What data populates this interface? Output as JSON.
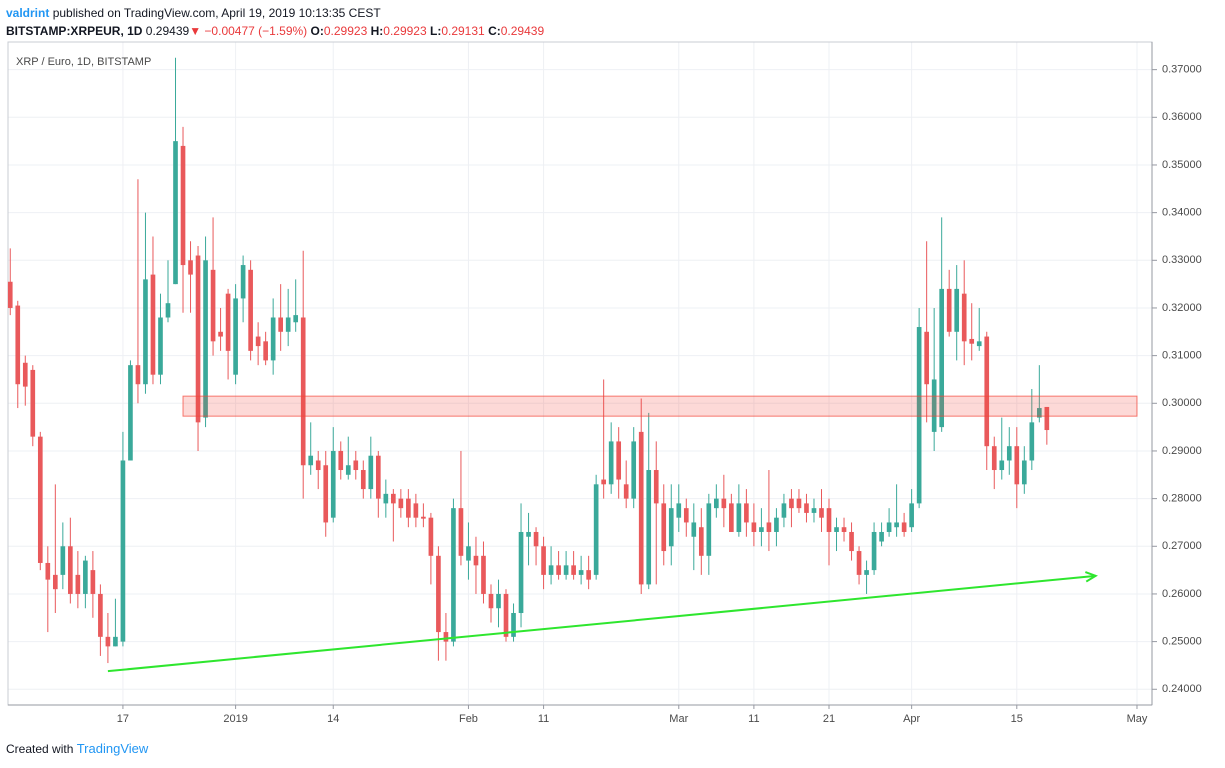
{
  "header": {
    "author": "valdrint",
    "published": "published on TradingView.com, April 19, 2019 10:13:35 CEST",
    "symbol": "BITSTAMP:XRPEUR, 1D",
    "last": "0.29439",
    "arrow": "▼",
    "change": "−0.00477 (−1.59%)",
    "o_label": "O:",
    "o": "0.29923",
    "h_label": "H:",
    "h": "0.29923",
    "l_label": "L:",
    "l": "0.29131",
    "c_label": "C:",
    "c": "0.29439"
  },
  "chart_data": {
    "type": "candlestick",
    "title": "XRP / Euro, 1D, BITSTAMP",
    "up_color": "#3aa99a",
    "down_color": "#e9595b",
    "grid": true,
    "ohlc": [
      [
        0.3255,
        0.3325,
        0.3185,
        0.32
      ],
      [
        0.3205,
        0.3215,
        0.299,
        0.304
      ],
      [
        0.3085,
        0.31,
        0.2995,
        0.3035
      ],
      [
        0.307,
        0.308,
        0.291,
        0.293
      ],
      [
        0.293,
        0.294,
        0.265,
        0.2665
      ],
      [
        0.2665,
        0.27,
        0.252,
        0.263
      ],
      [
        0.264,
        0.283,
        0.256,
        0.261
      ],
      [
        0.264,
        0.275,
        0.261,
        0.27
      ],
      [
        0.27,
        0.276,
        0.258,
        0.26
      ],
      [
        0.264,
        0.269,
        0.257,
        0.26
      ],
      [
        0.26,
        0.268,
        0.257,
        0.267
      ],
      [
        0.265,
        0.269,
        0.255,
        0.26
      ],
      [
        0.26,
        0.262,
        0.247,
        0.251
      ],
      [
        0.251,
        0.256,
        0.2455,
        0.249
      ],
      [
        0.249,
        0.259,
        0.249,
        0.251
      ],
      [
        0.25,
        0.294,
        0.249,
        0.288
      ],
      [
        0.288,
        0.309,
        0.288,
        0.308
      ],
      [
        0.308,
        0.347,
        0.3,
        0.304
      ],
      [
        0.304,
        0.34,
        0.302,
        0.326
      ],
      [
        0.327,
        0.335,
        0.304,
        0.306
      ],
      [
        0.306,
        0.323,
        0.304,
        0.318
      ],
      [
        0.318,
        0.33,
        0.317,
        0.321
      ],
      [
        0.325,
        0.3725,
        0.325,
        0.355
      ],
      [
        0.354,
        0.358,
        0.319,
        0.329
      ],
      [
        0.33,
        0.334,
        0.319,
        0.327
      ],
      [
        0.331,
        0.333,
        0.29,
        0.296
      ],
      [
        0.297,
        0.335,
        0.295,
        0.33
      ],
      [
        0.328,
        0.339,
        0.31,
        0.313
      ],
      [
        0.315,
        0.32,
        0.311,
        0.314
      ],
      [
        0.323,
        0.324,
        0.305,
        0.311
      ],
      [
        0.306,
        0.325,
        0.304,
        0.322
      ],
      [
        0.322,
        0.331,
        0.317,
        0.329
      ],
      [
        0.328,
        0.33,
        0.309,
        0.311
      ],
      [
        0.314,
        0.317,
        0.308,
        0.312
      ],
      [
        0.313,
        0.315,
        0.308,
        0.309
      ],
      [
        0.309,
        0.322,
        0.306,
        0.318
      ],
      [
        0.318,
        0.325,
        0.311,
        0.315
      ],
      [
        0.315,
        0.324,
        0.312,
        0.318
      ],
      [
        0.317,
        0.326,
        0.315,
        0.3185
      ],
      [
        0.318,
        0.332,
        0.28,
        0.287
      ],
      [
        0.287,
        0.296,
        0.285,
        0.289
      ],
      [
        0.288,
        0.29,
        0.282,
        0.286
      ],
      [
        0.287,
        0.29,
        0.272,
        0.275
      ],
      [
        0.276,
        0.295,
        0.275,
        0.29
      ],
      [
        0.29,
        0.292,
        0.284,
        0.286
      ],
      [
        0.285,
        0.293,
        0.284,
        0.287
      ],
      [
        0.288,
        0.29,
        0.284,
        0.286
      ],
      [
        0.286,
        0.288,
        0.28,
        0.282
      ],
      [
        0.282,
        0.293,
        0.28,
        0.289
      ],
      [
        0.289,
        0.29,
        0.276,
        0.28
      ],
      [
        0.279,
        0.284,
        0.276,
        0.281
      ],
      [
        0.281,
        0.282,
        0.271,
        0.279
      ],
      [
        0.28,
        0.282,
        0.276,
        0.278
      ],
      [
        0.28,
        0.282,
        0.274,
        0.276
      ],
      [
        0.279,
        0.281,
        0.274,
        0.276
      ],
      [
        0.2762,
        0.279,
        0.274,
        0.2758
      ],
      [
        0.276,
        0.277,
        0.262,
        0.268
      ],
      [
        0.268,
        0.27,
        0.246,
        0.252
      ],
      [
        0.252,
        0.256,
        0.246,
        0.25
      ],
      [
        0.25,
        0.28,
        0.249,
        0.278
      ],
      [
        0.278,
        0.29,
        0.266,
        0.268
      ],
      [
        0.267,
        0.275,
        0.263,
        0.27
      ],
      [
        0.268,
        0.272,
        0.26,
        0.266
      ],
      [
        0.268,
        0.271,
        0.258,
        0.26
      ],
      [
        0.26,
        0.262,
        0.254,
        0.257
      ],
      [
        0.257,
        0.263,
        0.253,
        0.26
      ],
      [
        0.26,
        0.261,
        0.25,
        0.251
      ],
      [
        0.251,
        0.258,
        0.25,
        0.256
      ],
      [
        0.256,
        0.279,
        0.253,
        0.273
      ],
      [
        0.272,
        0.277,
        0.266,
        0.273
      ],
      [
        0.273,
        0.274,
        0.266,
        0.27
      ],
      [
        0.27,
        0.272,
        0.261,
        0.264
      ],
      [
        0.264,
        0.27,
        0.262,
        0.266
      ],
      [
        0.266,
        0.269,
        0.263,
        0.264
      ],
      [
        0.264,
        0.269,
        0.263,
        0.266
      ],
      [
        0.266,
        0.269,
        0.263,
        0.264
      ],
      [
        0.264,
        0.268,
        0.262,
        0.265
      ],
      [
        0.265,
        0.268,
        0.261,
        0.263
      ],
      [
        0.264,
        0.285,
        0.263,
        0.283
      ],
      [
        0.284,
        0.305,
        0.28,
        0.283
      ],
      [
        0.283,
        0.296,
        0.281,
        0.292
      ],
      [
        0.292,
        0.295,
        0.28,
        0.284
      ],
      [
        0.283,
        0.288,
        0.278,
        0.28
      ],
      [
        0.28,
        0.295,
        0.278,
        0.292
      ],
      [
        0.294,
        0.301,
        0.26,
        0.262
      ],
      [
        0.262,
        0.298,
        0.261,
        0.286
      ],
      [
        0.286,
        0.292,
        0.262,
        0.279
      ],
      [
        0.279,
        0.283,
        0.266,
        0.269
      ],
      [
        0.27,
        0.283,
        0.266,
        0.278
      ],
      [
        0.276,
        0.283,
        0.273,
        0.279
      ],
      [
        0.278,
        0.28,
        0.272,
        0.275
      ],
      [
        0.272,
        0.279,
        0.265,
        0.275
      ],
      [
        0.274,
        0.278,
        0.264,
        0.268
      ],
      [
        0.268,
        0.281,
        0.264,
        0.279
      ],
      [
        0.278,
        0.283,
        0.276,
        0.28
      ],
      [
        0.28,
        0.285,
        0.274,
        0.278
      ],
      [
        0.279,
        0.281,
        0.273,
        0.273
      ],
      [
        0.273,
        0.283,
        0.272,
        0.279
      ],
      [
        0.279,
        0.282,
        0.272,
        0.275
      ],
      [
        0.275,
        0.279,
        0.27,
        0.273
      ],
      [
        0.273,
        0.278,
        0.27,
        0.274
      ],
      [
        0.275,
        0.286,
        0.269,
        0.273
      ],
      [
        0.273,
        0.278,
        0.27,
        0.276
      ],
      [
        0.276,
        0.281,
        0.274,
        0.279
      ],
      [
        0.28,
        0.282,
        0.274,
        0.278
      ],
      [
        0.28,
        0.282,
        0.277,
        0.278
      ],
      [
        0.279,
        0.281,
        0.275,
        0.277
      ],
      [
        0.277,
        0.28,
        0.275,
        0.278
      ],
      [
        0.278,
        0.282,
        0.273,
        0.276
      ],
      [
        0.278,
        0.28,
        0.266,
        0.273
      ],
      [
        0.273,
        0.276,
        0.269,
        0.274
      ],
      [
        0.274,
        0.276,
        0.271,
        0.273
      ],
      [
        0.273,
        0.275,
        0.267,
        0.269
      ],
      [
        0.269,
        0.27,
        0.262,
        0.264
      ],
      [
        0.264,
        0.267,
        0.26,
        0.265
      ],
      [
        0.265,
        0.275,
        0.264,
        0.273
      ],
      [
        0.271,
        0.275,
        0.27,
        0.273
      ],
      [
        0.273,
        0.278,
        0.272,
        0.275
      ],
      [
        0.274,
        0.283,
        0.272,
        0.275
      ],
      [
        0.275,
        0.277,
        0.272,
        0.273
      ],
      [
        0.274,
        0.282,
        0.273,
        0.279
      ],
      [
        0.279,
        0.32,
        0.278,
        0.316
      ],
      [
        0.315,
        0.334,
        0.296,
        0.304
      ],
      [
        0.294,
        0.32,
        0.29,
        0.305
      ],
      [
        0.295,
        0.339,
        0.294,
        0.324
      ],
      [
        0.324,
        0.328,
        0.314,
        0.315
      ],
      [
        0.315,
        0.329,
        0.309,
        0.324
      ],
      [
        0.323,
        0.33,
        0.308,
        0.313
      ],
      [
        0.3135,
        0.321,
        0.309,
        0.3125
      ],
      [
        0.312,
        0.32,
        0.311,
        0.313
      ],
      [
        0.314,
        0.315,
        0.286,
        0.291
      ],
      [
        0.291,
        0.293,
        0.282,
        0.286
      ],
      [
        0.286,
        0.297,
        0.284,
        0.288
      ],
      [
        0.288,
        0.295,
        0.285,
        0.291
      ],
      [
        0.291,
        0.295,
        0.278,
        0.283
      ],
      [
        0.283,
        0.291,
        0.281,
        0.288
      ],
      [
        0.288,
        0.303,
        0.286,
        0.296
      ],
      [
        0.297,
        0.308,
        0.296,
        0.299
      ],
      [
        0.29923,
        0.29923,
        0.29131,
        0.29439
      ]
    ],
    "xlim": [
      -0.3,
      152
    ],
    "xticks": [
      {
        "value": 15,
        "label": "17"
      },
      {
        "value": 30,
        "label": "2019"
      },
      {
        "value": 43,
        "label": "14"
      },
      {
        "value": 61,
        "label": "Feb"
      },
      {
        "value": 71,
        "label": "11"
      },
      {
        "value": 89,
        "label": "Mar"
      },
      {
        "value": 99,
        "label": "11"
      },
      {
        "value": 109,
        "label": "21"
      },
      {
        "value": 120,
        "label": "Apr"
      },
      {
        "value": 134,
        "label": "15"
      },
      {
        "value": 150,
        "label": "May"
      }
    ],
    "ylim": [
      0.2367,
      0.3758
    ],
    "yticks": [
      {
        "value": 0.24,
        "label": "0.24000"
      },
      {
        "value": 0.25,
        "label": "0.25000"
      },
      {
        "value": 0.26,
        "label": "0.26000"
      },
      {
        "value": 0.27,
        "label": "0.27000"
      },
      {
        "value": 0.28,
        "label": "0.28000"
      },
      {
        "value": 0.29,
        "label": "0.29000"
      },
      {
        "value": 0.3,
        "label": "0.30000"
      },
      {
        "value": 0.31,
        "label": "0.31000"
      },
      {
        "value": 0.32,
        "label": "0.32000"
      },
      {
        "value": 0.33,
        "label": "0.33000"
      },
      {
        "value": 0.34,
        "label": "0.34000"
      },
      {
        "value": 0.35,
        "label": "0.35000"
      },
      {
        "value": 0.36,
        "label": "0.36000"
      },
      {
        "value": 0.37,
        "label": "0.37000"
      }
    ],
    "zone": {
      "x": [
        23,
        150
      ],
      "y": [
        0.2973,
        0.3015
      ],
      "color": "#f44336"
    },
    "trendline": {
      "x": [
        13,
        144.5
      ],
      "y": [
        0.2438,
        0.2638
      ],
      "color": "#2ee62e"
    }
  },
  "footer": {
    "created": "Created with",
    "brand": "TradingView"
  }
}
